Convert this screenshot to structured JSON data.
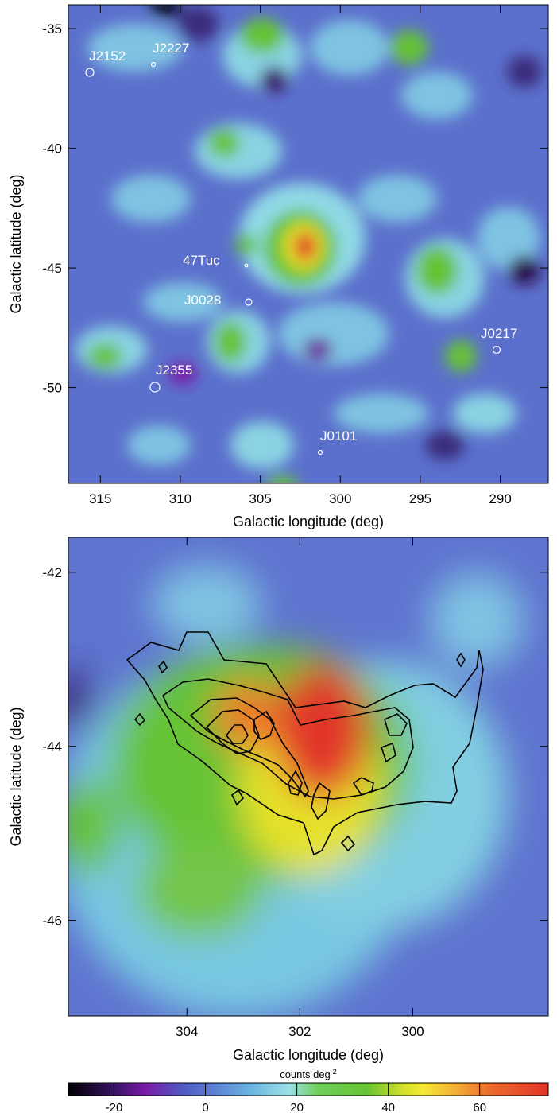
{
  "figure": {
    "colorbar": {
      "label": "counts deg",
      "label_exponent": "-2",
      "range": [
        -30,
        75
      ],
      "ticks": [
        -20,
        0,
        20,
        40,
        60
      ],
      "colors": [
        "#000000",
        "#3a1468",
        "#7a1aa6",
        "#4f5cc4",
        "#5b7dd1",
        "#69b5e0",
        "#9de0e8",
        "#6fcf5b",
        "#66c334",
        "#d6e12a",
        "#f6e934",
        "#f4b437",
        "#ec6a2c",
        "#e1342a"
      ]
    }
  },
  "chart_data": [
    {
      "type": "heatmap",
      "xlabel": "Galactic longitude (deg)",
      "ylabel": "Galactic latitude (deg)",
      "xlim": [
        317,
        287
      ],
      "ylim": [
        -54,
        -34
      ],
      "xticks": [
        315,
        310,
        305,
        300,
        295,
        290
      ],
      "yticks": [
        -35,
        -40,
        -45,
        -50
      ],
      "grid": false,
      "peak": {
        "l": 302.2,
        "b": -44.2,
        "value": 70
      },
      "sources": [
        {
          "name": "J2152",
          "l": 315.6,
          "b": -36.7
        },
        {
          "name": "J2227",
          "l": 311.3,
          "b": -36.5
        },
        {
          "name": "47Tuc",
          "l": 305.9,
          "b": -44.9
        },
        {
          "name": "J0028",
          "l": 305.6,
          "b": -46.4
        },
        {
          "name": "J0217",
          "l": 290.3,
          "b": -48.3
        },
        {
          "name": "J2355",
          "l": 311.2,
          "b": -50.0
        },
        {
          "name": "J0101",
          "l": 301.0,
          "b": -52.8
        }
      ]
    },
    {
      "type": "heatmap",
      "xlabel": "Galactic longitude (deg)",
      "ylabel": "Galactic latitude (deg)",
      "xlim": [
        306.1,
        297.6
      ],
      "ylim": [
        -47.1,
        -41.6
      ],
      "xticks": [
        304,
        302,
        300
      ],
      "yticks": [
        -42,
        -44,
        -46
      ],
      "grid": false,
      "peak": {
        "l": 301.9,
        "b": -44.2,
        "value": 70
      },
      "contours": "black contour lines overlay"
    }
  ]
}
